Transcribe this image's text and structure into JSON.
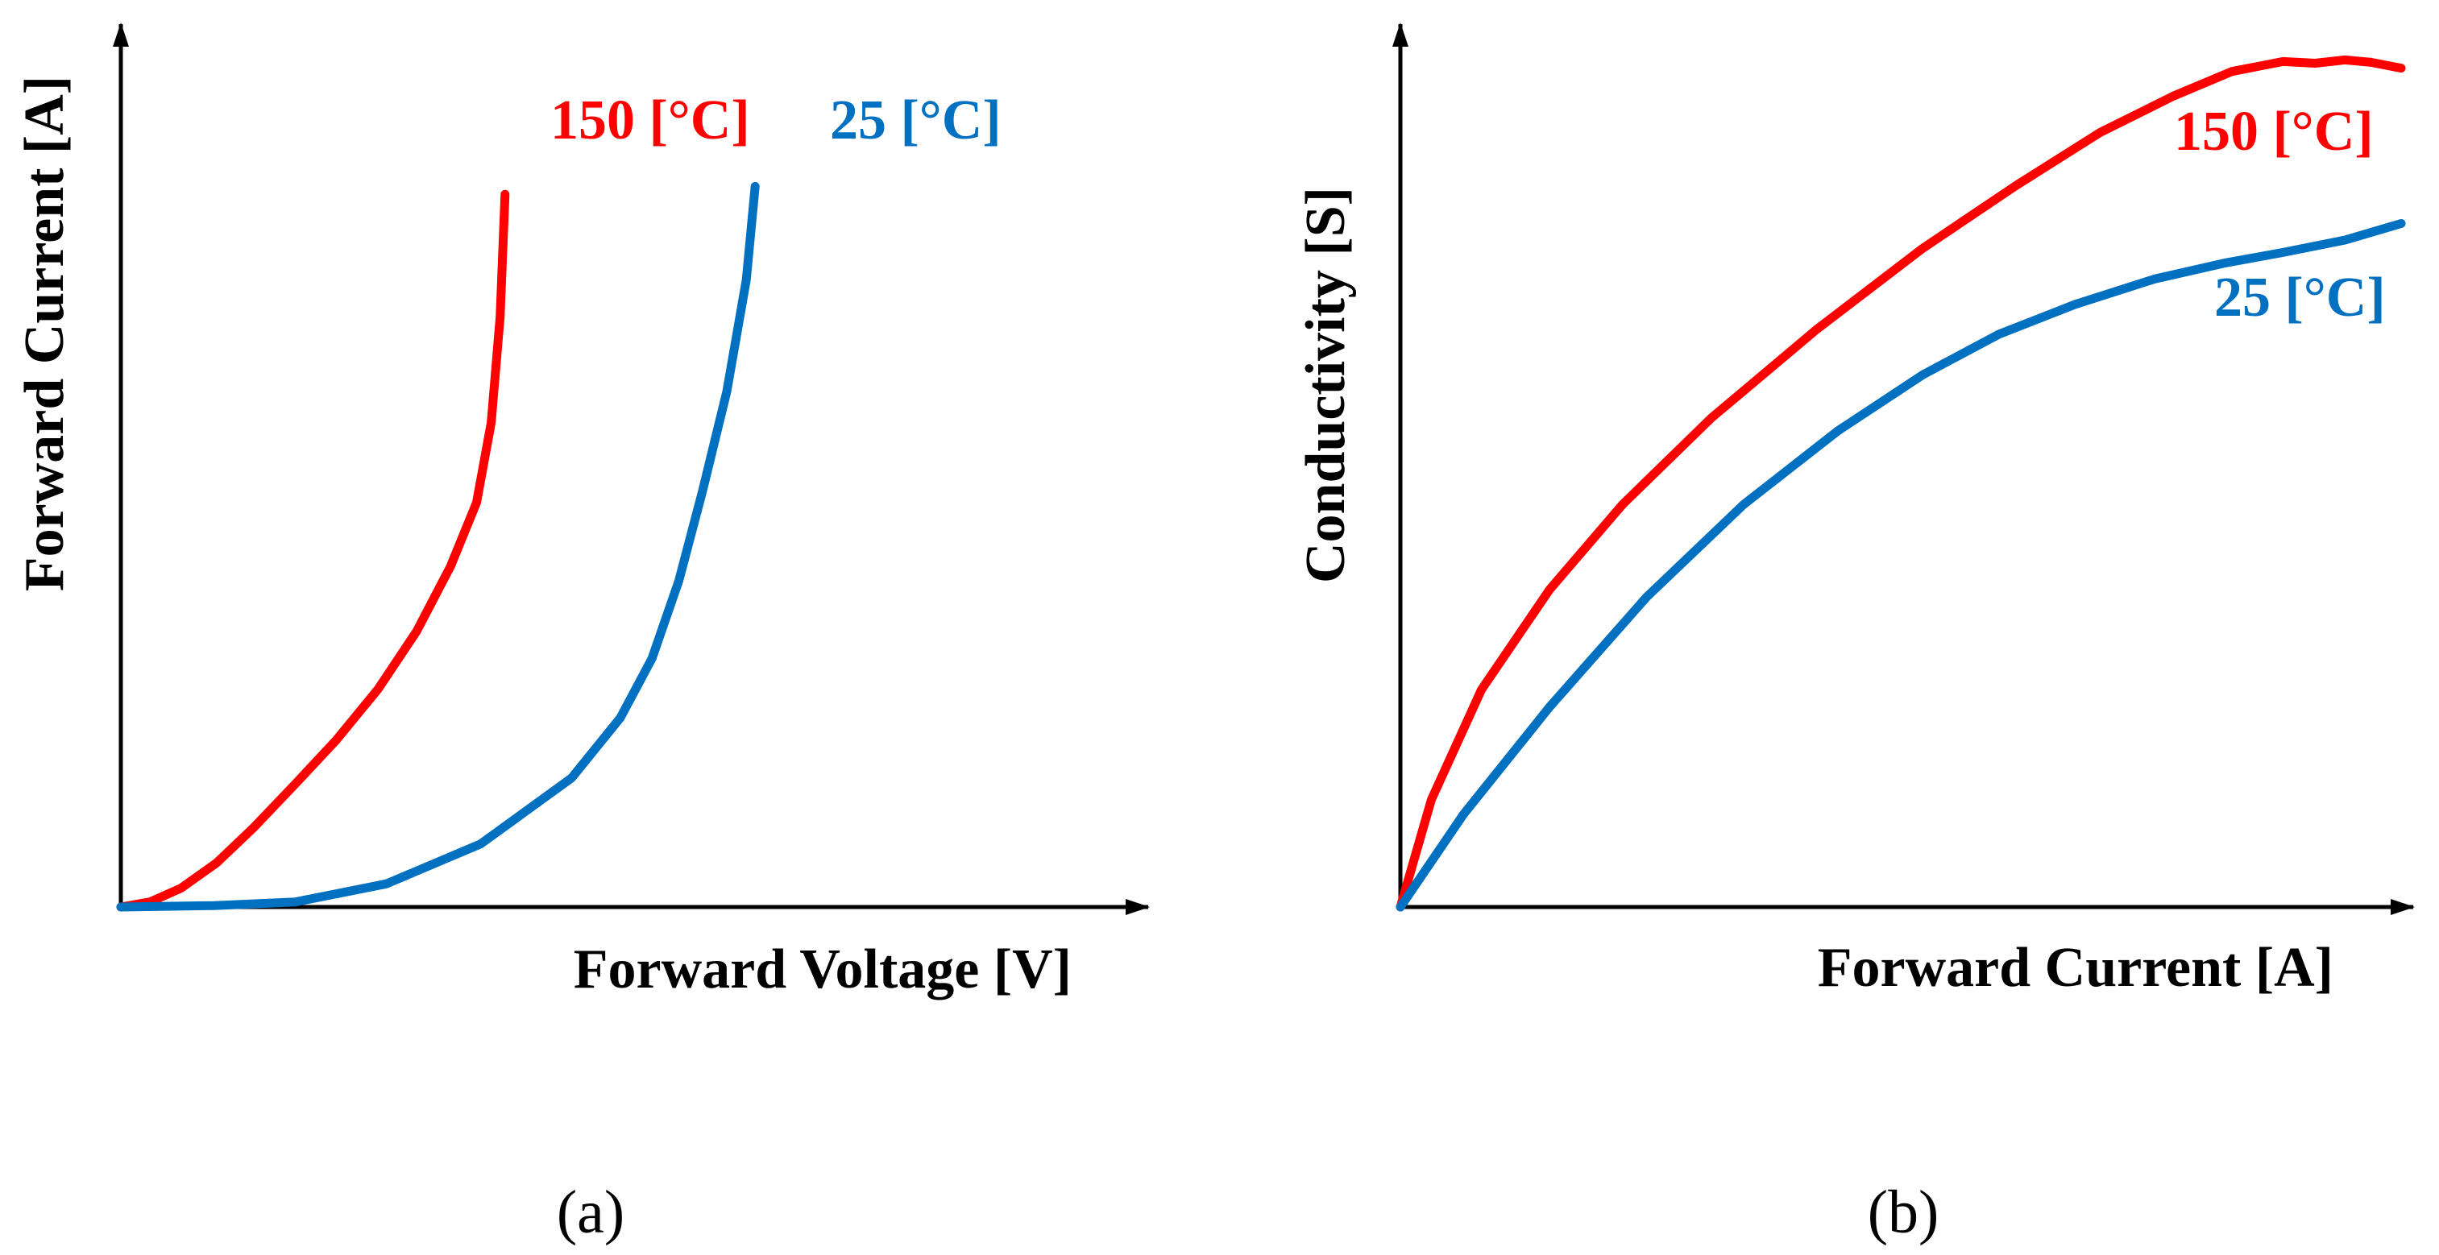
{
  "chart_data": [
    {
      "type": "line",
      "panel_label": "(a)",
      "title": "",
      "xlabel": "Forward Voltage [V]",
      "ylabel": "Forward Current [A]",
      "xlim": [
        0,
        100
      ],
      "ylim": [
        0,
        100
      ],
      "grid": false,
      "series": [
        {
          "name": "150 [°C]",
          "color": "#ff0000",
          "x": [
            0,
            3.6,
            7.4,
            11.8,
            16.3,
            21.5,
            26.5,
            31.7,
            36.4,
            40.6,
            43.8,
            45.6,
            46.7,
            47.3
          ],
          "y": [
            0,
            0.7,
            2.6,
            6.1,
            10.9,
            17.0,
            23.0,
            30.1,
            38.0,
            47.0,
            55.8,
            66.8,
            81.4,
            98.3
          ]
        },
        {
          "name": "25 [°C]",
          "color": "#0070c0",
          "x": [
            0,
            11.5,
            21.5,
            32.7,
            44.3,
            55.5,
            61.5,
            65.4,
            68.7,
            71.6,
            74.6,
            77.0,
            78.1
          ],
          "y": [
            0,
            0.2,
            0.7,
            3.2,
            8.7,
            17.8,
            26.1,
            34.3,
            45.0,
            57.3,
            71.1,
            86.5,
            99.4
          ]
        }
      ]
    },
    {
      "type": "line",
      "panel_label": "(b)",
      "title": "",
      "xlabel": "Forward Current [A]",
      "ylabel": "Conductivity [S]",
      "xlim": [
        0,
        100
      ],
      "ylim": [
        0,
        100
      ],
      "grid": false,
      "series": [
        {
          "name": "150 [°C]",
          "color": "#ff0000",
          "x": [
            0,
            3.1,
            8.1,
            14.9,
            22.2,
            31.1,
            41.5,
            52.2,
            61.4,
            69.9,
            77.2,
            83.1,
            88.2,
            91.4,
            94.4,
            97.0,
            100
          ],
          "y": [
            0,
            13.0,
            26.3,
            38.4,
            48.7,
            59.2,
            69.8,
            79.7,
            87.2,
            93.7,
            98.1,
            101.1,
            102.3,
            102.1,
            102.5,
            102.2,
            101.5
          ]
        },
        {
          "name": "25 [°C]",
          "color": "#0070c0",
          "x": [
            0,
            6.3,
            14.9,
            24.6,
            34.3,
            43.7,
            52.2,
            59.8,
            67.4,
            75.4,
            82.3,
            88.2,
            94.4,
            100
          ],
          "y": [
            0,
            11.2,
            24.2,
            37.5,
            48.7,
            57.6,
            64.4,
            69.3,
            72.9,
            76.0,
            77.9,
            79.2,
            80.7,
            82.7
          ]
        }
      ]
    }
  ]
}
